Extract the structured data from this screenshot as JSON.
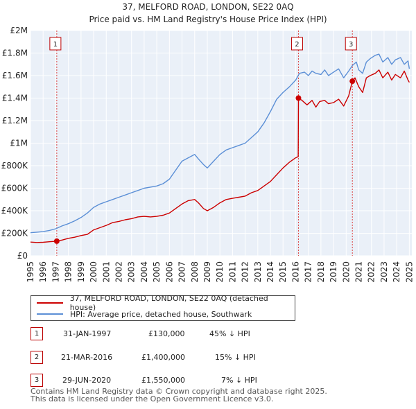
{
  "chart_data": {
    "type": "line",
    "title": "37, MELFORD ROAD, LONDON, SE22 0AQ",
    "subtitle": "Price paid vs. HM Land Registry's House Price Index (HPI)",
    "xlim": [
      1995,
      2025.2
    ],
    "ylim": [
      0,
      2000000
    ],
    "x_ticks": [
      "1995",
      "1996",
      "1997",
      "1998",
      "1999",
      "2000",
      "2001",
      "2002",
      "2003",
      "2004",
      "2005",
      "2006",
      "2007",
      "2008",
      "2009",
      "2010",
      "2011",
      "2012",
      "2013",
      "2014",
      "2015",
      "2016",
      "2017",
      "2018",
      "2019",
      "2020",
      "2021",
      "2022",
      "2023",
      "2024",
      "2025"
    ],
    "y_ticks": [
      {
        "value": 0,
        "label": "£0"
      },
      {
        "value": 200000,
        "label": "£200K"
      },
      {
        "value": 400000,
        "label": "£400K"
      },
      {
        "value": 600000,
        "label": "£600K"
      },
      {
        "value": 800000,
        "label": "£800K"
      },
      {
        "value": 1000000,
        "label": "£1M"
      },
      {
        "value": 1200000,
        "label": "£1.2M"
      },
      {
        "value": 1400000,
        "label": "£1.4M"
      },
      {
        "value": 1600000,
        "label": "£1.6M"
      },
      {
        "value": 1800000,
        "label": "£1.8M"
      },
      {
        "value": 2000000,
        "label": "£2M"
      }
    ],
    "grid": true,
    "series": [
      {
        "name": "37, MELFORD ROAD, LONDON, SE22 0AQ (detached house)",
        "color": "#cc0000",
        "x": [
          1995.0,
          1995.5,
          1996.0,
          1996.5,
          1997.08,
          1997.5,
          1998.0,
          1998.5,
          1999.0,
          1999.5,
          2000.0,
          2000.5,
          2001.0,
          2001.5,
          2002.0,
          2002.5,
          2003.0,
          2003.5,
          2004.0,
          2004.5,
          2005.0,
          2005.5,
          2006.0,
          2006.5,
          2007.0,
          2007.5,
          2008.0,
          2008.3,
          2008.7,
          2009.0,
          2009.5,
          2010.0,
          2010.5,
          2011.0,
          2011.5,
          2012.0,
          2012.5,
          2013.0,
          2013.5,
          2014.0,
          2014.5,
          2015.0,
          2015.5,
          2016.0,
          2016.2,
          2016.22,
          2016.5,
          2016.9,
          2017.3,
          2017.6,
          2017.9,
          2018.3,
          2018.6,
          2019.0,
          2019.4,
          2019.8,
          2020.2,
          2020.49,
          2020.7,
          2021.0,
          2021.3,
          2021.6,
          2021.9,
          2022.3,
          2022.6,
          2022.9,
          2023.3,
          2023.6,
          2023.9,
          2024.3,
          2024.6,
          2024.9,
          2025.0
        ],
        "y": [
          122000,
          118000,
          120000,
          125000,
          130000,
          140000,
          155000,
          165000,
          180000,
          190000,
          230000,
          250000,
          270000,
          295000,
          305000,
          320000,
          330000,
          345000,
          350000,
          345000,
          350000,
          360000,
          380000,
          420000,
          460000,
          490000,
          500000,
          470000,
          420000,
          400000,
          430000,
          470000,
          500000,
          510000,
          520000,
          530000,
          560000,
          580000,
          620000,
          660000,
          720000,
          780000,
          830000,
          870000,
          880000,
          1400000,
          1380000,
          1340000,
          1380000,
          1320000,
          1370000,
          1380000,
          1350000,
          1360000,
          1390000,
          1330000,
          1420000,
          1550000,
          1580000,
          1500000,
          1450000,
          1580000,
          1600000,
          1620000,
          1650000,
          1580000,
          1630000,
          1560000,
          1610000,
          1580000,
          1640000,
          1560000,
          1540000
        ]
      },
      {
        "name": "HPI: Average price, detached house, Southwark",
        "color": "#5b8fd6",
        "x": [
          1995.0,
          1995.5,
          1996.0,
          1996.5,
          1997.0,
          1997.5,
          1998.0,
          1998.5,
          1999.0,
          1999.5,
          2000.0,
          2000.5,
          2001.0,
          2001.5,
          2002.0,
          2002.5,
          2003.0,
          2003.5,
          2004.0,
          2004.5,
          2005.0,
          2005.5,
          2006.0,
          2006.5,
          2007.0,
          2007.5,
          2008.0,
          2008.3,
          2008.7,
          2009.0,
          2009.5,
          2010.0,
          2010.5,
          2011.0,
          2011.5,
          2012.0,
          2012.5,
          2013.0,
          2013.5,
          2014.0,
          2014.5,
          2015.0,
          2015.5,
          2016.0,
          2016.3,
          2016.7,
          2017.0,
          2017.3,
          2017.6,
          2018.0,
          2018.3,
          2018.6,
          2019.0,
          2019.4,
          2019.8,
          2020.2,
          2020.5,
          2020.8,
          2021.0,
          2021.3,
          2021.6,
          2021.9,
          2022.3,
          2022.6,
          2022.9,
          2023.3,
          2023.6,
          2023.9,
          2024.3,
          2024.6,
          2024.9,
          2025.0
        ],
        "y": [
          205000,
          210000,
          215000,
          225000,
          240000,
          265000,
          285000,
          310000,
          340000,
          380000,
          430000,
          460000,
          480000,
          500000,
          520000,
          540000,
          560000,
          580000,
          600000,
          610000,
          620000,
          640000,
          680000,
          760000,
          840000,
          870000,
          900000,
          860000,
          810000,
          780000,
          840000,
          900000,
          940000,
          960000,
          980000,
          1000000,
          1050000,
          1100000,
          1180000,
          1280000,
          1390000,
          1450000,
          1500000,
          1560000,
          1620000,
          1630000,
          1600000,
          1640000,
          1620000,
          1610000,
          1650000,
          1600000,
          1630000,
          1660000,
          1580000,
          1640000,
          1690000,
          1720000,
          1650000,
          1620000,
          1720000,
          1750000,
          1780000,
          1790000,
          1720000,
          1760000,
          1700000,
          1740000,
          1760000,
          1700000,
          1730000,
          1660000
        ]
      }
    ],
    "sales": [
      {
        "label": "1",
        "x": 1997.08,
        "y": 130000
      },
      {
        "label": "2",
        "x": 2016.22,
        "y": 1400000
      },
      {
        "label": "3",
        "x": 2020.49,
        "y": 1550000
      }
    ]
  },
  "legend": {
    "property_label": "37, MELFORD ROAD, LONDON, SE22 0AQ (detached house)",
    "hpi_label": "HPI: Average price, detached house, Southwark"
  },
  "transactions": [
    {
      "num": "1",
      "date": "31-JAN-1997",
      "price": "£130,000",
      "hpi": "45% ↓ HPI"
    },
    {
      "num": "2",
      "date": "21-MAR-2016",
      "price": "£1,400,000",
      "hpi": "15% ↓ HPI"
    },
    {
      "num": "3",
      "date": "29-JUN-2020",
      "price": "£1,550,000",
      "hpi": "7% ↓ HPI"
    }
  ],
  "footer": {
    "line1": "Contains HM Land Registry data © Crown copyright and database right 2025.",
    "line2": "This data is licensed under the Open Government Licence v3.0."
  }
}
